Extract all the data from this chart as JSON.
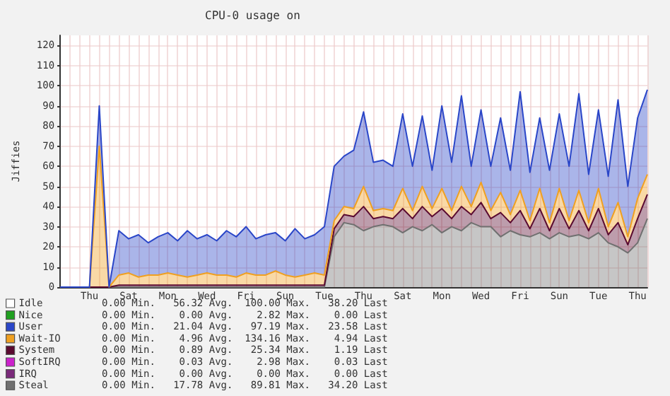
{
  "chart_data": {
    "type": "area",
    "title": "CPU-0 usage on",
    "ylabel": "Jiffies",
    "stacked": true,
    "grid": true,
    "legend": "bottom left",
    "categories": [
      null,
      null,
      null,
      "Thu",
      null,
      null,
      null,
      "Sat",
      null,
      null,
      null,
      "Mon",
      null,
      null,
      null,
      "Wed",
      null,
      null,
      null,
      "Fri",
      null,
      null,
      null,
      "Sun",
      null,
      null,
      null,
      "Tue",
      null,
      null,
      null,
      "Thu",
      null,
      null,
      null,
      "Sat",
      null,
      null,
      null,
      "Mon",
      null,
      null,
      null,
      "Wed",
      null,
      null,
      null,
      "Fri",
      null,
      null,
      null,
      "Sun",
      null,
      null,
      null,
      "Tue",
      null,
      null,
      null,
      "Thu",
      null
    ],
    "ylim": [
      0,
      125
    ],
    "yticks": [
      0,
      10,
      20,
      30,
      40,
      50,
      60,
      70,
      80,
      90,
      100,
      110,
      120
    ],
    "series": [
      {
        "name": "Steal",
        "color": "#707070",
        "values": [
          0,
          0,
          0,
          0,
          0,
          0,
          0,
          0,
          0,
          0,
          0,
          0,
          0,
          0,
          0,
          0,
          0,
          0,
          0,
          0,
          0,
          0,
          0,
          0,
          0,
          0,
          0,
          0,
          25,
          32,
          31,
          28,
          30,
          31,
          30,
          27,
          30,
          28,
          31,
          27,
          30,
          28,
          32,
          30,
          30,
          25,
          28,
          26,
          25,
          27,
          24,
          27,
          25,
          26,
          24,
          27,
          22,
          20,
          17,
          22,
          34
        ]
      },
      {
        "name": "IRQ",
        "color": "#7a2a7a",
        "values": [
          null,
          null,
          null,
          null,
          null,
          null,
          null,
          null,
          null,
          null,
          null,
          null,
          null,
          null,
          null,
          null,
          null,
          null,
          null,
          null,
          null,
          null,
          null,
          null,
          null,
          null,
          null,
          null,
          null,
          null,
          null,
          null,
          null,
          null,
          null,
          null,
          null,
          null,
          null,
          null,
          null,
          null,
          null,
          null,
          null,
          null,
          null,
          null,
          null,
          null,
          null,
          null,
          null,
          null,
          null,
          null,
          null,
          null,
          null,
          null,
          null
        ]
      },
      {
        "name": "SoftIRQ",
        "color": "#cc22cc",
        "values": [
          null,
          null,
          null,
          null,
          null,
          null,
          null,
          null,
          null,
          null,
          null,
          null,
          null,
          null,
          null,
          null,
          null,
          null,
          null,
          null,
          null,
          null,
          null,
          null,
          null,
          null,
          null,
          null,
          null,
          null,
          null,
          null,
          null,
          null,
          null,
          null,
          null,
          null,
          null,
          null,
          null,
          null,
          null,
          null,
          null,
          null,
          null,
          null,
          null,
          null,
          null,
          null,
          null,
          null,
          null,
          null,
          null,
          null,
          null,
          null,
          null
        ]
      },
      {
        "name": "System",
        "color": "#5a0a30",
        "values": [
          0,
          0,
          0,
          0,
          0,
          0,
          1,
          1,
          1,
          1,
          1,
          1,
          1,
          1,
          1,
          1,
          1,
          1,
          1,
          1,
          1,
          1,
          1,
          1,
          1,
          1,
          1,
          1,
          4,
          4,
          4,
          12,
          4,
          4,
          4,
          12,
          4,
          12,
          4,
          12,
          4,
          12,
          4,
          12,
          4,
          12,
          4,
          12,
          4,
          12,
          4,
          12,
          4,
          12,
          4,
          12,
          4,
          12,
          4,
          12,
          12
        ]
      },
      {
        "name": "Wait-IO",
        "color": "#f0a020",
        "values": [
          0,
          0,
          0,
          0,
          70,
          0,
          5,
          6,
          4,
          5,
          5,
          6,
          5,
          4,
          5,
          6,
          5,
          5,
          4,
          6,
          5,
          5,
          7,
          5,
          4,
          5,
          6,
          5,
          4,
          4,
          4,
          10,
          4,
          4,
          4,
          10,
          4,
          10,
          4,
          10,
          4,
          10,
          4,
          10,
          4,
          10,
          4,
          10,
          4,
          10,
          4,
          10,
          4,
          10,
          4,
          10,
          4,
          10,
          4,
          10,
          10
        ]
      },
      {
        "name": "User",
        "color": "#2a46c8",
        "values": [
          0,
          0,
          0,
          0,
          20,
          0,
          22,
          17,
          21,
          16,
          19,
          20,
          17,
          23,
          18,
          19,
          17,
          22,
          20,
          23,
          18,
          20,
          19,
          17,
          24,
          18,
          19,
          24,
          27,
          25,
          29,
          37,
          24,
          24,
          22,
          37,
          22,
          35,
          19,
          41,
          24,
          45,
          20,
          36,
          22,
          37,
          22,
          49,
          24,
          35,
          26,
          37,
          27,
          48,
          24,
          39,
          25,
          51,
          25,
          40,
          42
        ]
      },
      {
        "name": "Nice",
        "color": "#20a020",
        "values": [
          null,
          null,
          null,
          null,
          null,
          null,
          null,
          null,
          null,
          null,
          null,
          null,
          null,
          null,
          null,
          null,
          null,
          null,
          null,
          null,
          null,
          null,
          null,
          null,
          null,
          null,
          null,
          null,
          null,
          null,
          null,
          null,
          null,
          null,
          null,
          null,
          null,
          null,
          null,
          null,
          null,
          null,
          null,
          null,
          null,
          null,
          null,
          null,
          null,
          null,
          null,
          null,
          null,
          null,
          null,
          null,
          null,
          null,
          null,
          null,
          null
        ]
      },
      {
        "name": "Idle",
        "color": "#ffffff",
        "values": [
          null,
          null,
          null,
          null,
          null,
          null,
          null,
          null,
          null,
          null,
          null,
          null,
          null,
          null,
          null,
          null,
          null,
          null,
          null,
          null,
          null,
          null,
          null,
          null,
          null,
          null,
          null,
          null,
          null,
          null,
          null,
          null,
          null,
          null,
          null,
          null,
          null,
          null,
          null,
          null,
          null,
          null,
          null,
          null,
          null,
          null,
          null,
          null,
          null,
          null,
          null,
          null,
          null,
          null,
          null,
          null,
          null,
          null,
          null,
          null,
          null
        ]
      }
    ],
    "annotations": [
      "0.00 Min.   56.32 Avg.  100.00 Max.   38.20 Last",
      "0.00 Min.    0.00 Avg.    2.82 Max.    0.00 Last",
      "0.00 Min.   21.04 Avg.   97.19 Max.   23.58 Last",
      "0.00 Min.    4.96 Avg.  134.16 Max.    4.94 Last",
      "0.00 Min.    0.89 Avg.   25.34 Max.    1.19 Last",
      "0.00 Min.    0.03 Avg.    2.98 Max.    0.03 Last",
      "0.00 Min.    0.00 Avg.    0.00 Max.    0.00 Last",
      "0.00 Min.   17.78 Avg.   89.81 Max.   34.20 Last"
    ]
  }
}
